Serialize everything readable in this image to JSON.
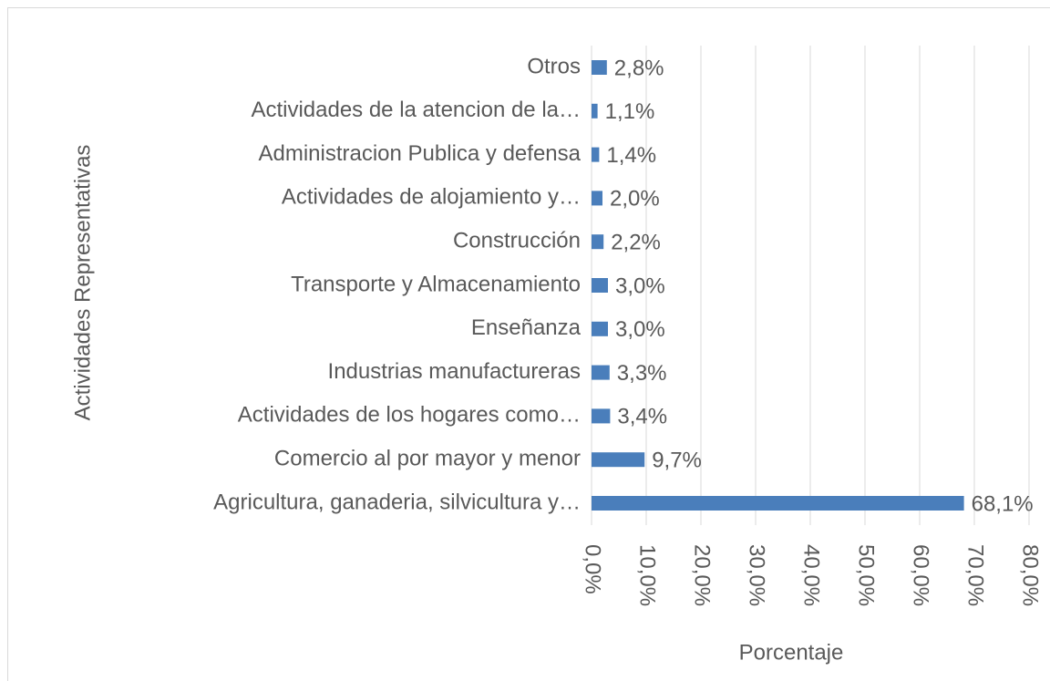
{
  "chart_data": {
    "type": "bar",
    "orientation": "horizontal",
    "y_label": "Actividades Representativas",
    "x_label": "Porcentaje",
    "categories": [
      "Agricultura, ganaderia, silvicultura y…",
      "Comercio al por mayor y menor",
      "Actividades de los hogares como…",
      "Industrias manufactureras",
      "Enseñanza",
      "Transporte y Almacenamiento",
      "Construcción",
      "Actividades de alojamiento y…",
      "Administracion Publica y defensa",
      "Actividades de la atencion de la…",
      "Otros"
    ],
    "values": [
      68.1,
      9.7,
      3.4,
      3.3,
      3.0,
      3.0,
      2.2,
      2.0,
      1.4,
      1.1,
      2.8
    ],
    "value_labels": [
      "68,1%",
      "9,7%",
      "3,4%",
      "3,3%",
      "3,0%",
      "3,0%",
      "2,2%",
      "2,0%",
      "1,4%",
      "1,1%",
      "2,8%"
    ],
    "color": "#4a7ebb",
    "xlim": [
      0,
      80
    ],
    "xticks": [
      {
        "value": 0,
        "label": "0,0%"
      },
      {
        "value": 10,
        "label": "10,0%"
      },
      {
        "value": 20,
        "label": "20,0%"
      },
      {
        "value": 30,
        "label": "30,0%"
      },
      {
        "value": 40,
        "label": "40,0%"
      },
      {
        "value": 50,
        "label": "50,0%"
      },
      {
        "value": 60,
        "label": "60,0%"
      },
      {
        "value": 70,
        "label": "70,0%"
      },
      {
        "value": 80,
        "label": "80,0%"
      }
    ],
    "grid": true
  }
}
